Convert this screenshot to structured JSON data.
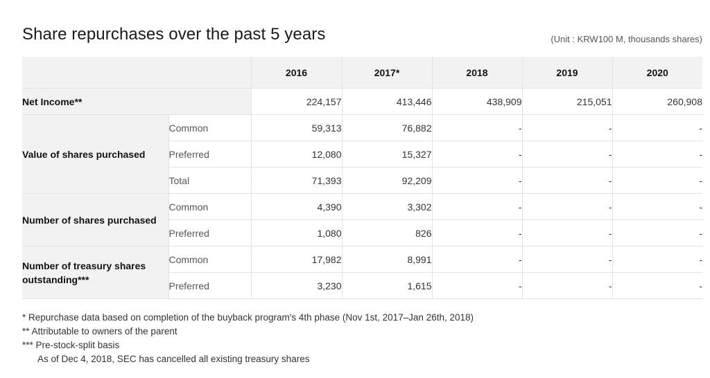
{
  "title": "Share repurchases over the past 5 years",
  "unit_note": "(Unit : KRW100 M, thousands shares)",
  "years": [
    "2016",
    "2017*",
    "2018",
    "2019",
    "2020"
  ],
  "rows": {
    "net_income": {
      "label": "Net Income**",
      "values": [
        "224,157",
        "413,446",
        "438,909",
        "215,051",
        "260,908"
      ]
    },
    "value_purchased": {
      "label": "Value of shares purchased",
      "common": {
        "label": "Common",
        "values": [
          "59,313",
          "76,882",
          "-",
          "-",
          "-"
        ]
      },
      "preferred": {
        "label": "Preferred",
        "values": [
          "12,080",
          "15,327",
          "-",
          "-",
          "-"
        ]
      },
      "total": {
        "label": "Total",
        "values": [
          "71,393",
          "92,209",
          "-",
          "-",
          "-"
        ]
      }
    },
    "number_purchased": {
      "label": "Number of shares purchased",
      "common": {
        "label": "Common",
        "values": [
          "4,390",
          "3,302",
          "-",
          "-",
          "-"
        ]
      },
      "preferred": {
        "label": "Preferred",
        "values": [
          "1,080",
          "826",
          "-",
          "-",
          "-"
        ]
      }
    },
    "treasury": {
      "label": "Number of treasury shares outstanding***",
      "common": {
        "label": "Common",
        "values": [
          "17,982",
          "8,991",
          "-",
          "-",
          "-"
        ]
      },
      "preferred": {
        "label": "Preferred",
        "values": [
          "3,230",
          "1,615",
          "-",
          "-",
          "-"
        ]
      }
    }
  },
  "footnotes": [
    "* Repurchase data based on completion of the buyback program's 4th phase (Nov 1st, 2017–Jan 26th, 2018)",
    "** Attributable to owners of the parent",
    "*** Pre-stock-split basis",
    "As of Dec 4, 2018, SEC has cancelled all existing treasury shares"
  ]
}
